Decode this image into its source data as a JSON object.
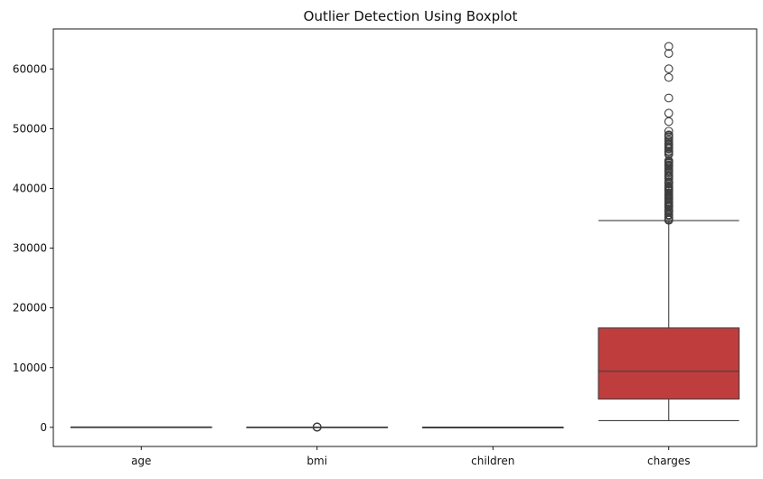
{
  "chart_data": {
    "type": "boxplot",
    "title": "Outlier Detection Using Boxplot",
    "xlabel": "",
    "ylabel": "",
    "categories": [
      "age",
      "bmi",
      "children",
      "charges"
    ],
    "ylim": [
      -3200,
      66700
    ],
    "yticks": [
      0,
      10000,
      20000,
      30000,
      40000,
      50000,
      60000
    ],
    "ytick_labels": [
      "0",
      "10000",
      "20000",
      "30000",
      "40000",
      "50000",
      "60000"
    ],
    "grid": false,
    "legend": "none",
    "boxes": [
      {
        "name": "age",
        "min": 18,
        "q1": 27,
        "median": 39,
        "q3": 51,
        "max": 64,
        "outliers": []
      },
      {
        "name": "bmi",
        "min": 16,
        "q1": 26.3,
        "median": 30.4,
        "q3": 34.7,
        "max": 47.3,
        "outliers": [
          47.4,
          48.1,
          49.1,
          50.4,
          52.6,
          53.1,
          53.1
        ]
      },
      {
        "name": "children",
        "min": 0,
        "q1": 0,
        "median": 1,
        "q3": 2,
        "max": 5,
        "outliers": []
      },
      {
        "name": "charges",
        "min": 1122,
        "q1": 4740,
        "median": 9382,
        "q3": 16640,
        "max": 34617,
        "outliers": [
          63770,
          62593,
          60021,
          58571,
          55135,
          52590,
          51195,
          49578,
          48970,
          48885,
          48675,
          48549,
          48173,
          47928,
          47496,
          47462,
          47305,
          47270,
          47055,
          46889,
          46719,
          46600,
          46255,
          46200,
          46151,
          46130,
          45863,
          45710,
          45702,
          44641,
          44585,
          44501,
          44423,
          44400,
          44260,
          44202,
          43943,
          43921,
          43896,
          43813,
          43754,
          43578,
          43254,
          42983,
          42969,
          42856,
          42760,
          42560,
          42303,
          42124,
          42112,
          41999,
          41919,
          41676,
          41661,
          41097,
          41034,
          40974,
          40941,
          40932,
          40904,
          40720,
          40420,
          40273,
          40182,
          40103,
          40003,
          39983,
          39871,
          39836,
          39774,
          39727,
          39611,
          39597,
          39556,
          39241,
          39125,
          39047,
          38998,
          38792,
          38746,
          38711,
          38511,
          38415,
          38344,
          38282,
          38245,
          38127,
          37829,
          37742,
          37701,
          37607,
          37485,
          37465,
          37270,
          37165,
          37134,
          37079,
          36950,
          36910,
          36898,
          36837,
          36580,
          36397,
          36307,
          36219,
          36197,
          36149,
          36124,
          36086,
          36021,
          35595,
          35585,
          35491,
          35160,
          35147,
          35069,
          34838,
          34806,
          34779,
          34673,
          34672
        ]
      }
    ],
    "colors": {
      "age": "#3274a1",
      "bmi": "#e1812c",
      "children": "#3a923a",
      "charges": "#c03d3e",
      "line": "#3f3f3f",
      "axis": "#000000"
    }
  }
}
